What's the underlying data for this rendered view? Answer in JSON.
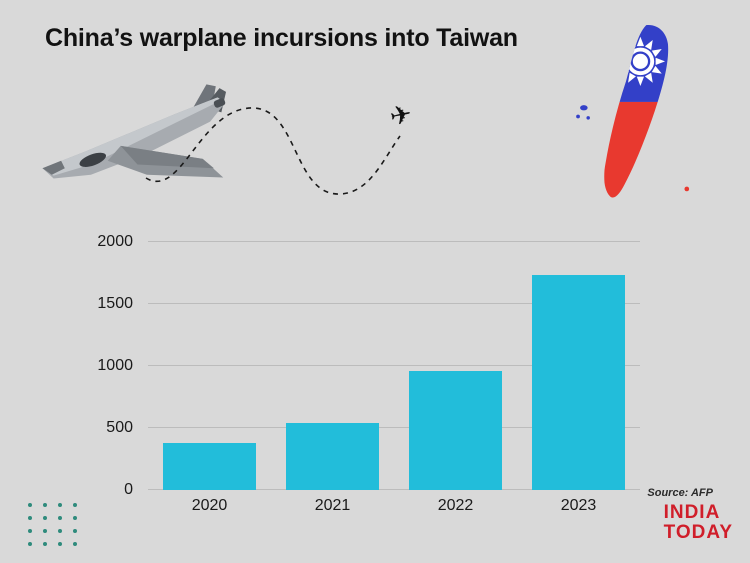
{
  "page": {
    "title": "China’s warplane incursions into Taiwan",
    "source": "Source: AFP",
    "brand_line1": "INDIA",
    "brand_line2": "TODAY"
  },
  "icons": {
    "airplane": "✈",
    "fighter_jet": "fighter-jet-image",
    "taiwan_map": "taiwan-flag-map"
  },
  "colors": {
    "background": "#d9d9d9",
    "bar": "#22bdda",
    "gridline": "#bcbcbc",
    "brand_red": "#d01e2a",
    "flag_blue": "#3340c8",
    "flag_red": "#e8392f",
    "dot_teal": "#2e8b7c"
  },
  "decor": {
    "dot_rows": 4,
    "dot_cols": 4
  },
  "chart_data": {
    "type": "bar",
    "title": "China’s warplane incursions into Taiwan",
    "categories": [
      "2020",
      "2021",
      "2022",
      "2023"
    ],
    "values": [
      380,
      540,
      960,
      1730
    ],
    "xlabel": "",
    "ylabel": "",
    "ylim": [
      0,
      2000
    ],
    "yticks": [
      0,
      500,
      1000,
      1500,
      2000
    ],
    "grid": true,
    "legend": false,
    "bar_color": "#22bdda"
  }
}
